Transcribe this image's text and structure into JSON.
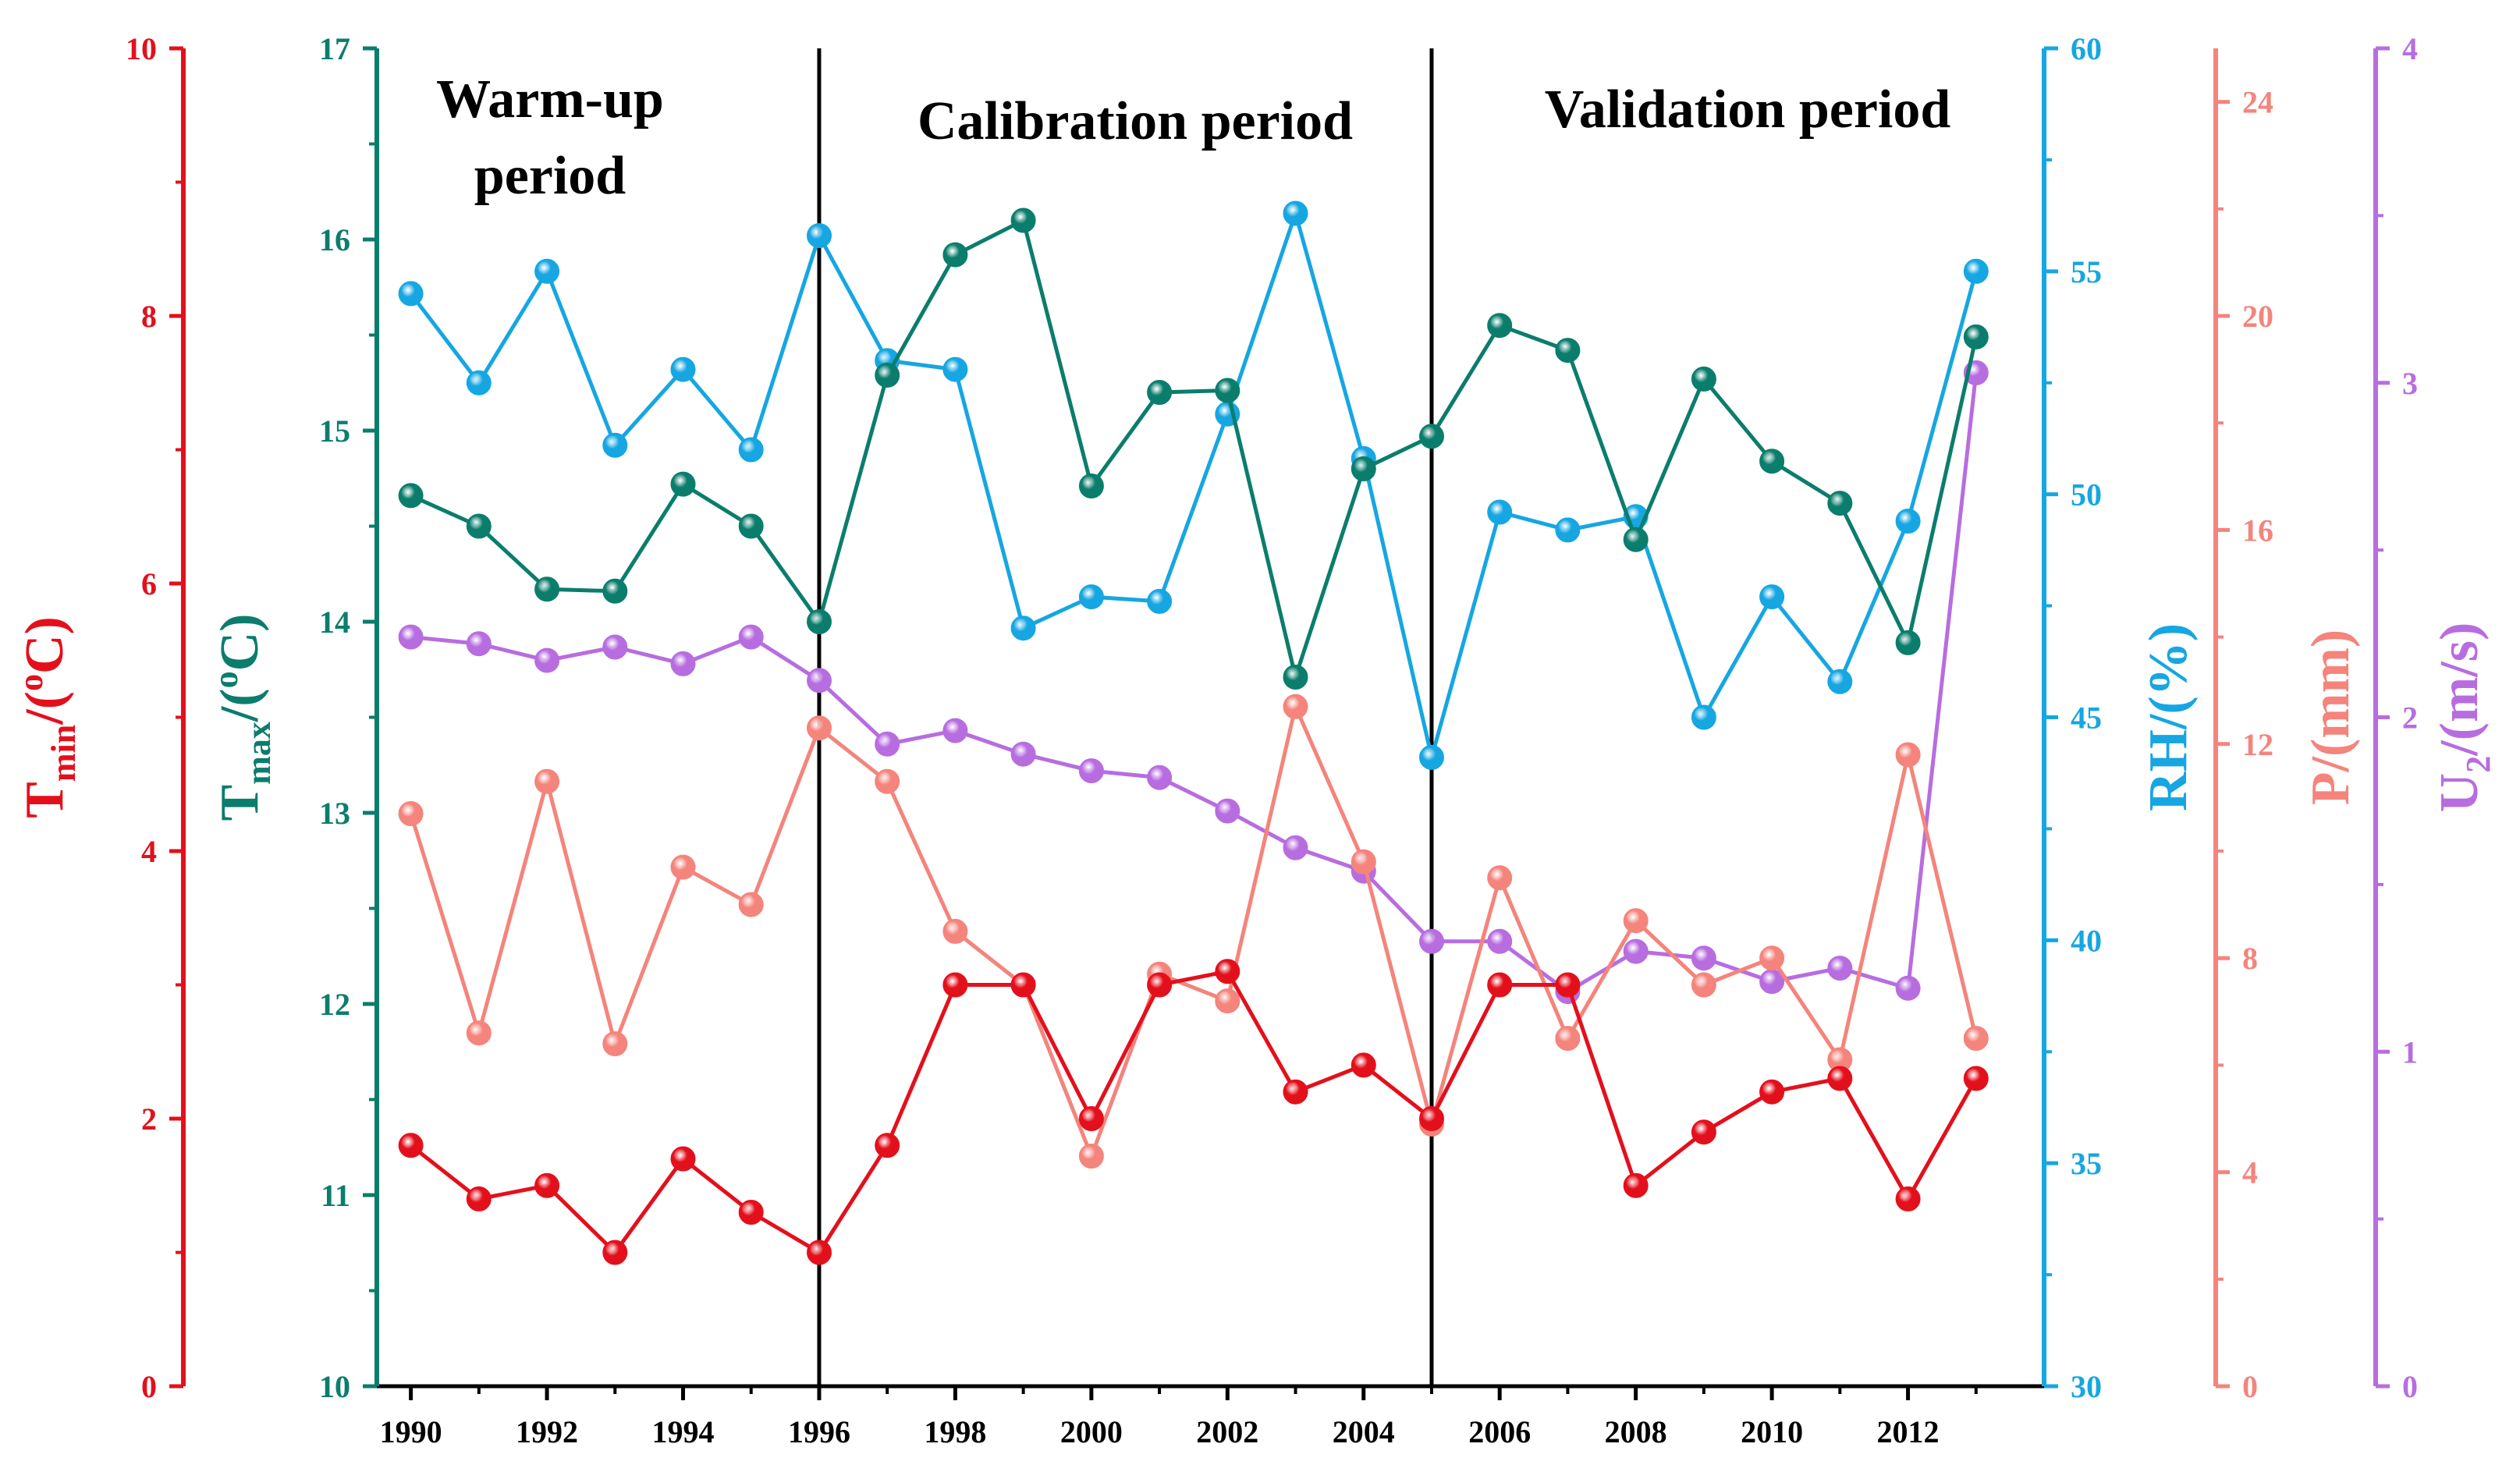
{
  "chart_data": {
    "type": "line",
    "title": "",
    "colors": {
      "tmin": "#e3101c",
      "tmax": "#0b7d6c",
      "rh": "#16a6e2",
      "p": "#f4847c",
      "u2": "#b76de0",
      "divider": "#000000"
    },
    "x": [
      1990,
      1991,
      1992,
      1993,
      1994,
      1995,
      1996,
      1997,
      1998,
      1999,
      2000,
      2001,
      2002,
      2003,
      2004,
      2005,
      2006,
      2007,
      2008,
      2009,
      2010,
      2011,
      2012,
      2013
    ],
    "x_ticks": [
      "1990",
      "1992",
      "1994",
      "1996",
      "1998",
      "2000",
      "2002",
      "2004",
      "2006",
      "2008",
      "2010",
      "2012"
    ],
    "xlim": [
      1989.5,
      2014
    ],
    "dividers": [
      1996,
      2005
    ],
    "periods": [
      {
        "lines": [
          "Warm-up",
          "period"
        ]
      },
      {
        "lines": [
          "Calibration period"
        ]
      },
      {
        "lines": [
          "Validation period"
        ]
      }
    ],
    "axes": [
      {
        "key": "tmin",
        "label": {
          "main": "T",
          "sub": "min",
          "rest": "/(",
          "sup": "o",
          "end": "C)"
        },
        "ylim": [
          0,
          10
        ],
        "ticks": [
          "0",
          "2",
          "4",
          "6",
          "8",
          "10"
        ]
      },
      {
        "key": "tmax",
        "label": {
          "main": "T",
          "sub": "max",
          "rest": "/(",
          "sup": "o",
          "end": "C)"
        },
        "ylim": [
          10,
          17
        ],
        "ticks": [
          "10",
          "11",
          "12",
          "13",
          "14",
          "15",
          "16",
          "17"
        ]
      },
      {
        "key": "rh",
        "label": {
          "main": "RH/(%)",
          "sub": "",
          "rest": "",
          "sup": "",
          "end": ""
        },
        "ylim": [
          30,
          60
        ],
        "ticks": [
          "30",
          "35",
          "40",
          "45",
          "50",
          "55",
          "60"
        ]
      },
      {
        "key": "p",
        "label": {
          "main": "P/(mm)",
          "sub": "",
          "rest": "",
          "sup": "",
          "end": ""
        },
        "ylim": [
          0,
          25
        ],
        "ticks": [
          "0",
          "4",
          "8",
          "12",
          "16",
          "20",
          "24"
        ]
      },
      {
        "key": "u2",
        "label": {
          "main": "U",
          "sub": "2",
          "rest": "/(m/s)",
          "sup": "",
          "end": ""
        },
        "ylim": [
          0,
          4
        ],
        "ticks": [
          "0",
          "1",
          "2",
          "3",
          "4"
        ]
      }
    ],
    "series": [
      {
        "key": "u2",
        "name": "U2 (m/s)",
        "values": [
          2.24,
          2.22,
          2.17,
          2.21,
          2.16,
          2.24,
          2.11,
          1.92,
          1.96,
          1.89,
          1.84,
          1.82,
          1.72,
          1.61,
          1.54,
          1.33,
          1.33,
          1.18,
          1.3,
          1.28,
          1.21,
          1.25,
          1.19,
          3.03
        ]
      },
      {
        "key": "p",
        "name": "P (mm)",
        "values": [
          10.7,
          6.6,
          11.3,
          6.4,
          9.7,
          9.0,
          12.3,
          11.3,
          8.5,
          7.5,
          4.3,
          7.7,
          7.2,
          12.7,
          9.8,
          4.9,
          9.5,
          6.5,
          8.7,
          7.5,
          8.0,
          6.1,
          11.8,
          6.5
        ]
      },
      {
        "key": "rh",
        "name": "RH (%)",
        "values": [
          54.5,
          52.5,
          55.0,
          51.1,
          52.8,
          51.0,
          55.8,
          53.0,
          52.8,
          47.0,
          47.7,
          47.6,
          51.8,
          56.3,
          50.8,
          44.1,
          49.6,
          49.2,
          49.5,
          45.0,
          47.7,
          45.8,
          49.4,
          55.0
        ]
      },
      {
        "key": "tmax",
        "name": "Tmax (°C)",
        "values": [
          14.66,
          14.5,
          14.17,
          14.16,
          14.72,
          14.5,
          14.0,
          15.29,
          15.92,
          16.1,
          14.71,
          15.2,
          15.21,
          13.71,
          14.8,
          14.97,
          15.55,
          15.42,
          14.43,
          15.27,
          14.84,
          14.62,
          13.89,
          15.49
        ]
      },
      {
        "key": "tmin",
        "name": "Tmin (°C)",
        "values": [
          1.8,
          1.4,
          1.5,
          1.0,
          1.7,
          1.3,
          1.0,
          1.8,
          3.0,
          3.0,
          2.0,
          3.0,
          3.1,
          2.2,
          2.4,
          2.0,
          3.0,
          3.0,
          1.5,
          1.9,
          2.2,
          2.3,
          1.4,
          2.3
        ]
      }
    ]
  }
}
